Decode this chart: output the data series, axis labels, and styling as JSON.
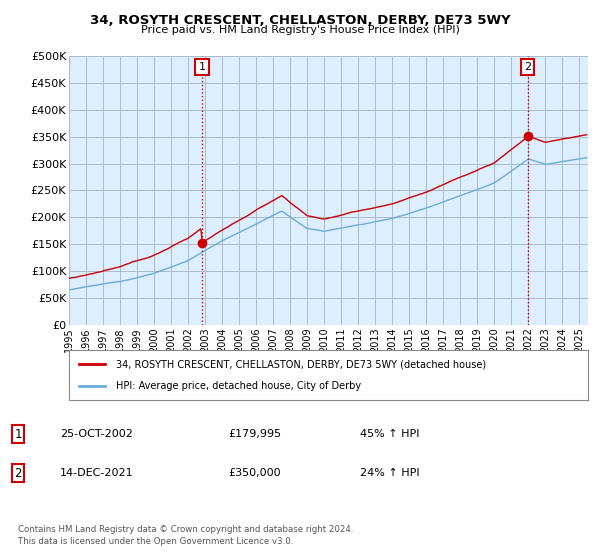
{
  "title": "34, ROSYTH CRESCENT, CHELLASTON, DERBY, DE73 5WY",
  "subtitle": "Price paid vs. HM Land Registry's House Price Index (HPI)",
  "ylabel_ticks": [
    "£0",
    "£50K",
    "£100K",
    "£150K",
    "£200K",
    "£250K",
    "£300K",
    "£350K",
    "£400K",
    "£450K",
    "£500K"
  ],
  "ytick_values": [
    0,
    50000,
    100000,
    150000,
    200000,
    250000,
    300000,
    350000,
    400000,
    450000,
    500000
  ],
  "ylim": [
    0,
    500000
  ],
  "xlim_start": 1995.0,
  "xlim_end": 2025.5,
  "xtick_years": [
    1995,
    1996,
    1997,
    1998,
    1999,
    2000,
    2001,
    2002,
    2003,
    2004,
    2005,
    2006,
    2007,
    2008,
    2009,
    2010,
    2011,
    2012,
    2013,
    2014,
    2015,
    2016,
    2017,
    2018,
    2019,
    2020,
    2021,
    2022,
    2023,
    2024,
    2025
  ],
  "hpi_color": "#6baed6",
  "price_color": "#cc0000",
  "vline_color": "#cc0000",
  "bg_color": "#ffffff",
  "chart_bg_color": "#ddeeff",
  "grid_color": "#aabbcc",
  "legend_label_price": "34, ROSYTH CRESCENT, CHELLASTON, DERBY, DE73 5WY (detached house)",
  "legend_label_hpi": "HPI: Average price, detached house, City of Derby",
  "sale1_year": 2002.82,
  "sale1_price": 179995,
  "sale1_label": "1",
  "sale2_year": 2021.96,
  "sale2_price": 350000,
  "sale2_label": "2",
  "footer_line1": "Contains HM Land Registry data © Crown copyright and database right 2024.",
  "footer_line2": "This data is licensed under the Open Government Licence v3.0.",
  "table_row1": [
    "1",
    "25-OCT-2002",
    "£179,995",
    "45% ↑ HPI"
  ],
  "table_row2": [
    "2",
    "14-DEC-2021",
    "£350,000",
    "24% ↑ HPI"
  ]
}
